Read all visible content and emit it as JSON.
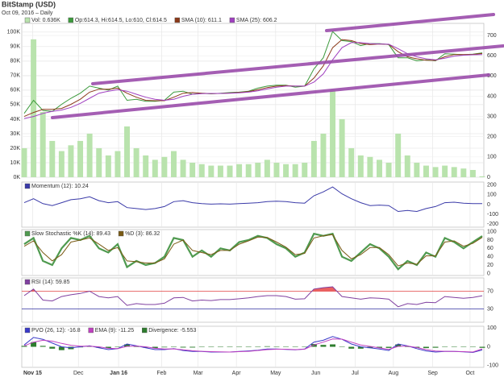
{
  "chart_data": [
    {
      "type": "line",
      "title": "BitStamp (USD)",
      "subtitle": "Oct 09, 2016 – Daily",
      "categories": [
        null,
        null,
        null,
        null,
        null,
        null,
        null,
        null,
        null,
        null,
        null,
        null,
        null,
        null,
        null,
        null,
        null,
        null,
        null,
        null,
        null,
        null,
        null,
        null,
        null,
        null,
        null,
        null,
        null,
        null,
        null,
        null,
        null,
        null,
        null,
        null,
        null,
        null,
        null,
        null,
        null,
        null,
        null,
        null,
        null,
        null,
        null,
        null,
        null,
        null
      ],
      "ylim": [
        0,
        106
      ],
      "yticks": [
        {
          "value": 0,
          "label": "0K"
        },
        {
          "value": 10,
          "label": "10K"
        },
        {
          "value": 20,
          "label": "20K"
        },
        {
          "value": 30,
          "label": "30K"
        },
        {
          "value": 40,
          "label": "40K"
        },
        {
          "value": 50,
          "label": "50K"
        },
        {
          "value": 60,
          "label": "60K"
        },
        {
          "value": 70,
          "label": "70K"
        },
        {
          "value": 80,
          "label": "80K"
        },
        {
          "value": 90,
          "label": "90K"
        },
        {
          "value": 100,
          "label": "100K"
        }
      ],
      "y2lim": [
        0,
        760
      ],
      "y2ticks": [
        0,
        100,
        200,
        300,
        400,
        500,
        600,
        700
      ],
      "grid": true,
      "series": [
        {
          "name": "Vol: 0.636K",
          "type": "bar",
          "color": "#b9e3ad",
          "values": [
            20,
            95,
            45,
            25,
            18,
            22,
            25,
            30,
            20,
            15,
            18,
            35,
            20,
            15,
            12,
            14,
            18,
            12,
            10,
            9,
            8,
            8,
            8,
            9,
            9,
            10,
            12,
            10,
            9,
            9,
            10,
            25,
            30,
            60,
            40,
            20,
            15,
            14,
            12,
            10,
            30,
            15,
            10,
            8,
            7,
            8,
            7,
            6,
            5,
            0.636
          ]
        },
        {
          "name": "Op:614.3, Hi:614.5, Lo:610, Cl:614.5",
          "axis": "y2",
          "color": "#3c9a3c",
          "values": [
            315,
            380,
            330,
            325,
            360,
            390,
            415,
            450,
            440,
            430,
            450,
            380,
            385,
            375,
            375,
            380,
            420,
            425,
            410,
            415,
            412,
            415,
            418,
            420,
            425,
            440,
            450,
            455,
            455,
            445,
            450,
            535,
            590,
            720,
            675,
            670,
            650,
            660,
            660,
            655,
            590,
            590,
            575,
            580,
            575,
            610,
            608,
            605,
            608,
            614.5
          ]
        },
        {
          "name": "SMA (10): 611.1",
          "axis": "y2",
          "color": "#8b3a1a",
          "values": [
            300,
            320,
            335,
            335,
            340,
            360,
            385,
            420,
            435,
            435,
            440,
            415,
            395,
            380,
            378,
            378,
            395,
            415,
            418,
            415,
            413,
            414,
            416,
            419,
            423,
            432,
            443,
            450,
            453,
            450,
            450,
            490,
            550,
            640,
            680,
            675,
            660,
            655,
            658,
            656,
            620,
            595,
            585,
            578,
            577,
            595,
            606,
            606,
            607,
            611.1
          ]
        },
        {
          "name": "SMA (25): 606.2",
          "axis": "y2",
          "color": "#a040c0",
          "values": [
            290,
            300,
            315,
            325,
            332,
            345,
            365,
            390,
            415,
            425,
            432,
            425,
            410,
            395,
            385,
            380,
            385,
            400,
            410,
            413,
            414,
            414,
            415,
            417,
            420,
            427,
            436,
            445,
            450,
            450,
            450,
            470,
            510,
            580,
            640,
            665,
            665,
            660,
            658,
            657,
            635,
            610,
            595,
            585,
            580,
            588,
            598,
            603,
            605,
            606.2
          ]
        }
      ]
    },
    {
      "type": "line",
      "ylim": [
        -230,
        230
      ],
      "yticks": [
        200,
        100,
        0,
        -100,
        -200
      ],
      "series": [
        {
          "name": "Momentum (12): 10.24",
          "color": "#3a3aa8",
          "values": [
            20,
            60,
            10,
            -10,
            20,
            50,
            60,
            80,
            40,
            20,
            30,
            -30,
            -40,
            -50,
            -40,
            -20,
            30,
            40,
            20,
            10,
            5,
            8,
            5,
            10,
            15,
            20,
            30,
            35,
            30,
            20,
            15,
            90,
            130,
            180,
            110,
            60,
            20,
            -10,
            -5,
            -10,
            -70,
            -60,
            -70,
            -40,
            -20,
            20,
            25,
            15,
            10,
            10.24
          ]
        }
      ]
    },
    {
      "type": "line",
      "ylim": [
        -5,
        105
      ],
      "yticks": [
        100,
        80,
        60,
        40,
        20,
        0
      ],
      "series": [
        {
          "name": "Slow Stochastic %K (14): 89.43",
          "color": "#4f9a4f",
          "values": [
            70,
            85,
            30,
            20,
            60,
            85,
            80,
            90,
            60,
            50,
            70,
            15,
            30,
            20,
            25,
            40,
            85,
            80,
            40,
            55,
            40,
            60,
            55,
            75,
            80,
            90,
            85,
            70,
            60,
            40,
            50,
            95,
            90,
            95,
            40,
            30,
            50,
            70,
            60,
            40,
            10,
            30,
            20,
            50,
            40,
            85,
            75,
            60,
            75,
            89.43
          ]
        },
        {
          "name": "%D (3): 86.32",
          "color": "#7a5a14",
          "values": [
            65,
            78,
            50,
            30,
            45,
            75,
            80,
            85,
            70,
            55,
            62,
            30,
            28,
            25,
            25,
            35,
            70,
            80,
            55,
            50,
            45,
            55,
            55,
            70,
            78,
            87,
            86,
            75,
            63,
            45,
            48,
            85,
            90,
            93,
            55,
            35,
            45,
            62,
            62,
            45,
            18,
            25,
            22,
            42,
            42,
            75,
            78,
            65,
            72,
            86.32
          ]
        }
      ]
    },
    {
      "type": "line",
      "ylim": [
        0,
        100
      ],
      "yticks": [
        30,
        70
      ],
      "threshold_colors": [
        "#3030a0",
        "#e04040"
      ],
      "overbought_fill": "#e85050",
      "series": [
        {
          "name": "RSI (14): 59.85",
          "color": "#8040a0",
          "values": [
            60,
            75,
            50,
            48,
            58,
            62,
            65,
            70,
            58,
            55,
            58,
            38,
            42,
            40,
            40,
            43,
            55,
            56,
            48,
            50,
            49,
            51,
            51,
            53,
            55,
            58,
            60,
            60,
            58,
            52,
            53,
            75,
            78,
            80,
            58,
            55,
            52,
            55,
            54,
            52,
            35,
            42,
            40,
            45,
            44,
            58,
            56,
            54,
            56,
            59.85
          ]
        }
      ]
    },
    {
      "type": "line",
      "ylim": [
        -110,
        110
      ],
      "yticks": [
        100,
        0,
        -100
      ],
      "xticks": [
        {
          "value": 0.9,
          "label": "Nov 15"
        },
        {
          "value": 5.8,
          "label": "Dec"
        },
        {
          "value": 10.1,
          "label": "Jan 16"
        },
        {
          "value": 14.7,
          "label": "Feb"
        },
        {
          "value": 18.6,
          "label": "Mar"
        },
        {
          "value": 22.7,
          "label": "Apr"
        },
        {
          "value": 26.9,
          "label": "May"
        },
        {
          "value": 31.2,
          "label": "Jun"
        },
        {
          "value": 35.4,
          "label": "Jul"
        },
        {
          "value": 39.5,
          "label": "Aug"
        },
        {
          "value": 43.7,
          "label": "Sep"
        },
        {
          "value": 47.7,
          "label": "Oct"
        }
      ],
      "series": [
        {
          "name": "PVO (26, 12): -16.8",
          "color": "#3a3ac8",
          "values": [
            10,
            50,
            40,
            20,
            0,
            -5,
            0,
            5,
            -5,
            -15,
            -10,
            15,
            5,
            -5,
            -15,
            -15,
            -10,
            -20,
            -25,
            -25,
            -28,
            -28,
            -28,
            -25,
            -22,
            -18,
            -12,
            -12,
            -14,
            -16,
            -12,
            25,
            35,
            55,
            40,
            15,
            0,
            -5,
            -12,
            -20,
            15,
            5,
            -10,
            -22,
            -28,
            -25,
            -25,
            -27,
            -30,
            -16.8
          ]
        },
        {
          "name": "EMA (9): -11.25",
          "color": "#c040c0",
          "values": [
            5,
            25,
            35,
            30,
            18,
            8,
            3,
            3,
            0,
            -8,
            -10,
            2,
            4,
            0,
            -8,
            -12,
            -11,
            -16,
            -21,
            -24,
            -26,
            -27,
            -28,
            -26,
            -24,
            -20,
            -15,
            -13,
            -13,
            -15,
            -13,
            10,
            25,
            42,
            41,
            25,
            10,
            2,
            -6,
            -14,
            2,
            4,
            -4,
            -15,
            -23,
            -24,
            -25,
            -26,
            -28,
            -11.25
          ]
        },
        {
          "name": "Divergence: -5.553",
          "type": "bar",
          "color": "#2e7d2e",
          "values": [
            5,
            25,
            5,
            -10,
            -18,
            -13,
            -3,
            2,
            -5,
            -7,
            0,
            13,
            1,
            -5,
            -7,
            -3,
            1,
            -4,
            -4,
            -1,
            -2,
            -1,
            0,
            1,
            2,
            2,
            3,
            1,
            -1,
            -1,
            1,
            15,
            10,
            13,
            -1,
            -10,
            -10,
            -7,
            -6,
            -6,
            13,
            1,
            -6,
            -7,
            -5,
            -1,
            0,
            -1,
            -2,
            -5.553
          ]
        }
      ]
    }
  ]
}
